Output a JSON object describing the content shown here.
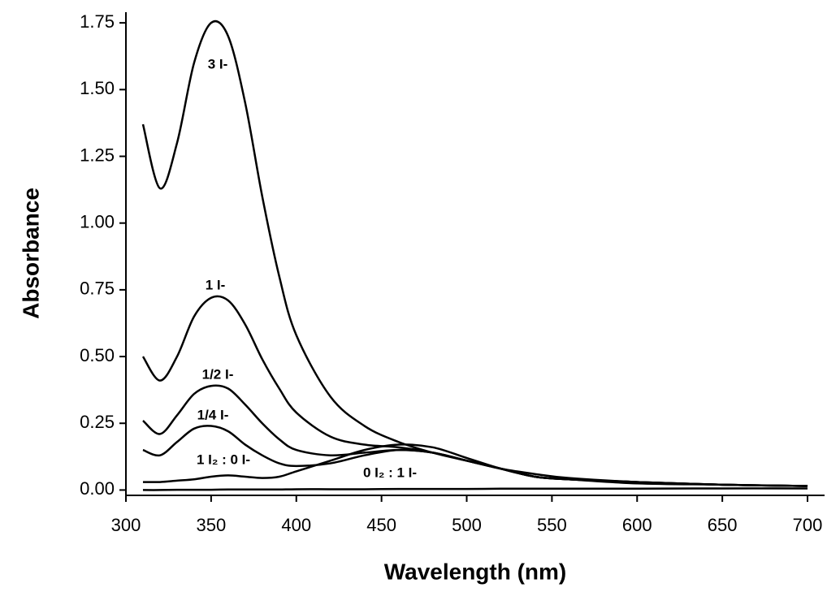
{
  "chart_data": {
    "type": "line",
    "x_label": "Wavelength (nm)",
    "y_label": "Absorbance",
    "x": [
      310,
      320,
      330,
      340,
      350,
      360,
      370,
      380,
      390,
      400,
      420,
      440,
      460,
      480,
      500,
      520,
      540,
      560,
      600,
      650,
      700
    ],
    "series": [
      {
        "name": "3 I-",
        "color": "#000000",
        "values": [
          1.37,
          1.13,
          1.3,
          1.6,
          1.75,
          1.7,
          1.45,
          1.1,
          0.8,
          0.58,
          0.35,
          0.24,
          0.18,
          0.14,
          0.11,
          0.08,
          0.06,
          0.045,
          0.03,
          0.02,
          0.015
        ]
      },
      {
        "name": "1 I-",
        "color": "#000000",
        "values": [
          0.5,
          0.41,
          0.5,
          0.65,
          0.72,
          0.71,
          0.62,
          0.49,
          0.38,
          0.29,
          0.2,
          0.17,
          0.16,
          0.14,
          0.11,
          0.08,
          0.05,
          0.04,
          0.025,
          0.02,
          0.015
        ]
      },
      {
        "name": "1/2 I-",
        "color": "#000000",
        "values": [
          0.26,
          0.21,
          0.28,
          0.36,
          0.39,
          0.38,
          0.32,
          0.25,
          0.19,
          0.15,
          0.13,
          0.14,
          0.15,
          0.14,
          0.11,
          0.08,
          0.05,
          0.04,
          0.03,
          0.02,
          0.015
        ]
      },
      {
        "name": "1/4 I-",
        "color": "#000000",
        "values": [
          0.15,
          0.13,
          0.18,
          0.23,
          0.24,
          0.22,
          0.17,
          0.13,
          0.1,
          0.09,
          0.1,
          0.13,
          0.15,
          0.14,
          0.11,
          0.08,
          0.05,
          0.04,
          0.03,
          0.02,
          0.015
        ]
      },
      {
        "name": "1 I₂ : 0 I-",
        "color": "#000000",
        "values": [
          0.03,
          0.03,
          0.035,
          0.04,
          0.05,
          0.055,
          0.05,
          0.045,
          0.05,
          0.07,
          0.11,
          0.15,
          0.17,
          0.16,
          0.12,
          0.08,
          0.05,
          0.04,
          0.03,
          0.02,
          0.015
        ]
      },
      {
        "name": "0 I₂ : 1 I-",
        "color": "#000000",
        "values": [
          0.0,
          0.0,
          0.001,
          0.001,
          0.001,
          0.002,
          0.002,
          0.002,
          0.002,
          0.003,
          0.003,
          0.003,
          0.004,
          0.004,
          0.004,
          0.005,
          0.005,
          0.005,
          0.005,
          0.006,
          0.006
        ]
      }
    ],
    "xlim": [
      300,
      710
    ],
    "ylim": [
      -0.02,
      1.79
    ],
    "xticks": [
      300,
      350,
      400,
      450,
      500,
      550,
      600,
      650,
      700
    ],
    "yticks": [
      {
        "value": 0,
        "label": "0.00"
      },
      {
        "value": 0.25,
        "label": "0.25"
      },
      {
        "value": 0.5,
        "label": "0.50"
      },
      {
        "value": 0.75,
        "label": "0.75"
      },
      {
        "value": 1,
        "label": "1.00"
      },
      {
        "value": 1.25,
        "label": "1.25"
      },
      {
        "value": 1.5,
        "label": "1.50"
      },
      {
        "value": 1.75,
        "label": "1.75"
      }
    ],
    "grid": false
  }
}
